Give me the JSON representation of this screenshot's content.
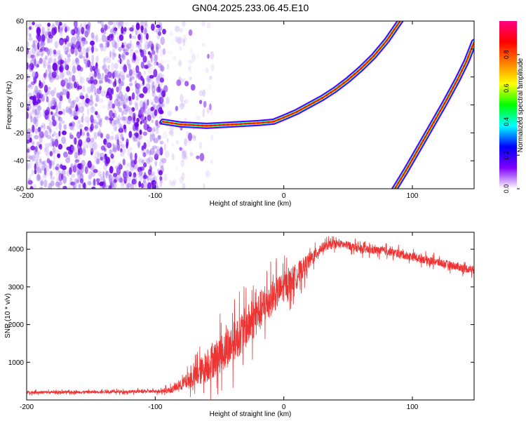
{
  "title": "GN04.2025.233.06.45.E10",
  "chart_data": [
    {
      "id": "spectrogram",
      "type": "heatmap",
      "xlabel": "Height of straight line (km)",
      "ylabel": "Frequency (Hz)",
      "xlim": [
        -200,
        148
      ],
      "ylim": [
        -60,
        60
      ],
      "xticks": [
        -200,
        -100,
        0,
        100
      ],
      "xtick_labels": [
        "-200",
        "-100",
        "0",
        "100"
      ],
      "yticks": [
        -60,
        -40,
        -20,
        0,
        20,
        40,
        60
      ],
      "ytick_labels": [
        "-60",
        "-40",
        "-20",
        "0",
        "20",
        "40",
        "60"
      ],
      "colorbar": {
        "label": "Normalized spectral amplitude",
        "range": [
          0,
          1
        ],
        "ticks": [
          0,
          0.2,
          0.4,
          0.6,
          0.8
        ],
        "tick_labels": [
          "0.0",
          "0.2",
          "0.4",
          "0.6",
          "0.8"
        ],
        "colormap": [
          "#ffffff",
          "#8000ff",
          "#0000ff",
          "#00ffff",
          "#00ff00",
          "#ffff00",
          "#ff8000",
          "#ff0000",
          "#ff0080"
        ]
      },
      "noise_region": {
        "x": [
          -200,
          -93
        ],
        "y": [
          -60,
          60
        ],
        "level": 0.25
      },
      "sparse_noise": {
        "x": [
          -93,
          -55
        ],
        "y": [
          -60,
          60
        ],
        "level": 0.1
      },
      "traces": [
        {
          "name": "",
          "points": [
            [
              -94,
              -12
            ],
            [
              -80,
              -14
            ],
            [
              -60,
              -15
            ],
            [
              -40,
              -14
            ],
            [
              -20,
              -13
            ],
            [
              -8,
              -12
            ],
            [
              0,
              -9
            ],
            [
              10,
              -5
            ],
            [
              20,
              0
            ],
            [
              30,
              5
            ],
            [
              40,
              11
            ],
            [
              50,
              18
            ],
            [
              60,
              26
            ],
            [
              70,
              35
            ],
            [
              80,
              46
            ],
            [
              86,
              54
            ],
            [
              92,
              62
            ]
          ],
          "peak": 1.0
        },
        {
          "name": "",
          "points": [
            [
              85,
              -62
            ],
            [
              95,
              -47
            ],
            [
              105,
              -31
            ],
            [
              115,
              -15
            ],
            [
              125,
              1
            ],
            [
              135,
              18
            ],
            [
              142,
              31
            ],
            [
              148,
              45
            ]
          ],
          "peak": 1.0
        }
      ]
    },
    {
      "id": "snr",
      "type": "line",
      "xlabel": "Height of straight line (km)",
      "ylabel": "SNR (10 * v/v)",
      "xlim": [
        -200,
        148
      ],
      "ylim": [
        0,
        4450
      ],
      "xticks": [
        -200,
        -100,
        0,
        100
      ],
      "xtick_labels": [
        "-200",
        "-100",
        "0",
        "100"
      ],
      "yticks": [
        1000,
        2000,
        3000,
        4000
      ],
      "ytick_labels": [
        "1000",
        "2000",
        "3000",
        "4000"
      ],
      "series": [
        {
          "name": "",
          "color": "#ee3333",
          "envelope": [
            {
              "x": -200,
              "y": 200,
              "noise": 70
            },
            {
              "x": -150,
              "y": 210,
              "noise": 70
            },
            {
              "x": -100,
              "y": 230,
              "noise": 80
            },
            {
              "x": -88,
              "y": 260,
              "noise": 150
            },
            {
              "x": -80,
              "y": 400,
              "noise": 260
            },
            {
              "x": -70,
              "y": 600,
              "noise": 500
            },
            {
              "x": -60,
              "y": 900,
              "noise": 800
            },
            {
              "x": -50,
              "y": 1200,
              "noise": 900
            },
            {
              "x": -40,
              "y": 1500,
              "noise": 1000
            },
            {
              "x": -30,
              "y": 1900,
              "noise": 1000
            },
            {
              "x": -20,
              "y": 2300,
              "noise": 1000
            },
            {
              "x": -10,
              "y": 2700,
              "noise": 850
            },
            {
              "x": 0,
              "y": 3000,
              "noise": 700
            },
            {
              "x": 10,
              "y": 3300,
              "noise": 600
            },
            {
              "x": 20,
              "y": 3700,
              "noise": 400
            },
            {
              "x": 30,
              "y": 4050,
              "noise": 230
            },
            {
              "x": 40,
              "y": 4150,
              "noise": 200
            },
            {
              "x": 50,
              "y": 4100,
              "noise": 200
            },
            {
              "x": 60,
              "y": 4000,
              "noise": 200
            },
            {
              "x": 80,
              "y": 3950,
              "noise": 200
            },
            {
              "x": 100,
              "y": 3800,
              "noise": 200
            },
            {
              "x": 120,
              "y": 3650,
              "noise": 200
            },
            {
              "x": 140,
              "y": 3500,
              "noise": 200
            },
            {
              "x": 148,
              "y": 3450,
              "noise": 200
            }
          ]
        }
      ]
    }
  ]
}
